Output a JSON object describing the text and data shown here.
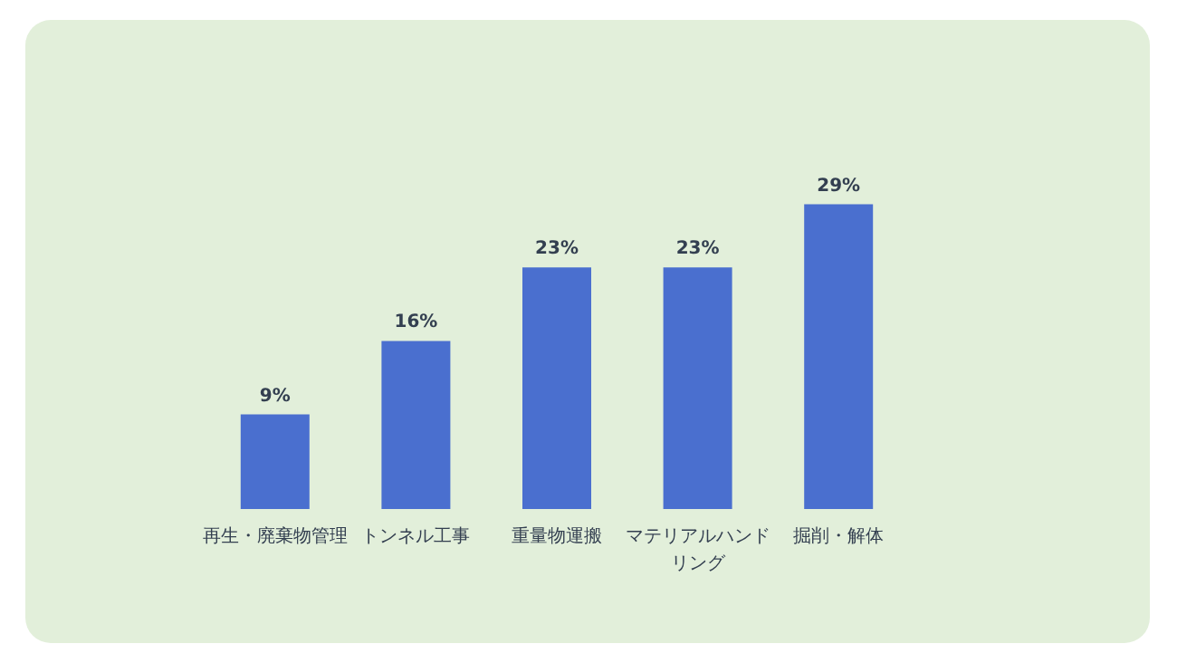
{
  "chart_data": {
    "type": "bar",
    "categories": [
      "再生・廃棄物管理",
      "トンネル工事",
      "重量物運搬",
      "マテリアルハンドリング",
      "掘削・解体"
    ],
    "values": [
      9,
      16,
      23,
      23,
      29
    ],
    "value_labels": [
      "9%",
      "16%",
      "23%",
      "23%",
      "29%"
    ],
    "color": "#4a6fcf"
  }
}
